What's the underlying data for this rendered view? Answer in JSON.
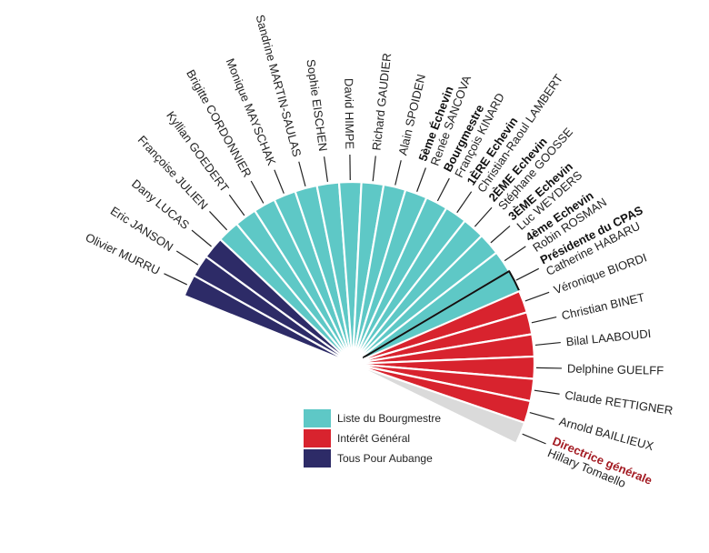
{
  "colors": {
    "bourgmestre": "#5ec8c6",
    "interet": "#d8232e",
    "aubange": "#2d2b67",
    "directrice": "#dadada",
    "highlight_text": "#a31a22"
  },
  "seats": [
    {
      "group": "aubange",
      "lines": [
        {
          "t": "Olivier MURRU"
        }
      ]
    },
    {
      "group": "aubange",
      "lines": [
        {
          "t": "Eric JANSON"
        }
      ]
    },
    {
      "group": "aubange",
      "lines": [
        {
          "t": "Dany LUCAS"
        }
      ]
    },
    {
      "group": "bourgmestre",
      "lines": [
        {
          "t": "Françoise JULIEN"
        }
      ]
    },
    {
      "group": "bourgmestre",
      "lines": [
        {
          "t": "Kyllian GOEDERT"
        }
      ]
    },
    {
      "group": "bourgmestre",
      "lines": [
        {
          "t": "Brigitte CORDONNIER"
        }
      ]
    },
    {
      "group": "bourgmestre",
      "lines": [
        {
          "t": "Monique MAYSCHAK"
        }
      ]
    },
    {
      "group": "bourgmestre",
      "lines": [
        {
          "t": "Sandrine MARTIN-SAULAS"
        }
      ]
    },
    {
      "group": "bourgmestre",
      "lines": [
        {
          "t": "Sophie EISCHEN"
        }
      ]
    },
    {
      "group": "bourgmestre",
      "lines": [
        {
          "t": "David HIMPE"
        }
      ]
    },
    {
      "group": "bourgmestre",
      "lines": [
        {
          "t": "Richard GAUDIER"
        }
      ]
    },
    {
      "group": "bourgmestre",
      "lines": [
        {
          "t": "Alain SPOIDEN"
        }
      ]
    },
    {
      "group": "bourgmestre",
      "lines": [
        {
          "t": "5ème Échevin",
          "bold": true
        },
        {
          "t": "Renée SANCOVA"
        }
      ]
    },
    {
      "group": "bourgmestre",
      "lines": [
        {
          "t": "Bourgmestre",
          "bold": true
        },
        {
          "t": "François KINARD"
        }
      ]
    },
    {
      "group": "bourgmestre",
      "lines": [
        {
          "t": "1ÈRE Echevin",
          "bold": true
        },
        {
          "t": "Christian-Raoul LAMBERT"
        }
      ]
    },
    {
      "group": "bourgmestre",
      "lines": [
        {
          "t": "2ÈME Echevin",
          "bold": true
        },
        {
          "t": "Stéphane GOOSSE"
        }
      ]
    },
    {
      "group": "bourgmestre",
      "lines": [
        {
          "t": "3ÈME Echevin",
          "bold": true
        },
        {
          "t": "Luc WEYDERS"
        }
      ]
    },
    {
      "group": "bourgmestre",
      "lines": [
        {
          "t": "4ème Echevin",
          "bold": true
        },
        {
          "t": "Robin ROSMAN"
        }
      ]
    },
    {
      "group": "bourgmestre",
      "outlined": true,
      "lines": [
        {
          "t": "Présidente du CPAS",
          "bold": true
        },
        {
          "t": "Catherine HABARU"
        }
      ]
    },
    {
      "group": "interet",
      "lines": [
        {
          "t": "Véronique BIORDI"
        }
      ]
    },
    {
      "group": "interet",
      "lines": [
        {
          "t": "Christian BINET"
        }
      ]
    },
    {
      "group": "interet",
      "lines": [
        {
          "t": "Bilal LAABOUDI"
        }
      ]
    },
    {
      "group": "interet",
      "lines": [
        {
          "t": "Delphine GUELFF"
        }
      ]
    },
    {
      "group": "interet",
      "lines": [
        {
          "t": "Claude RETTIGNER"
        }
      ]
    },
    {
      "group": "interet",
      "lines": [
        {
          "t": "Arnold BAILLIEUX"
        }
      ]
    },
    {
      "group": "directrice",
      "lines": [
        {
          "t": "Directrice générale",
          "bold": true,
          "red": true
        },
        {
          "t": "Hillary Tomaello"
        }
      ]
    }
  ],
  "legend": [
    {
      "key": "bourgmestre",
      "label": "Liste du Bourgmestre"
    },
    {
      "key": "interet",
      "label": "Intérêt Général"
    },
    {
      "key": "aubange",
      "label": "Tous Pour Aubange"
    }
  ]
}
